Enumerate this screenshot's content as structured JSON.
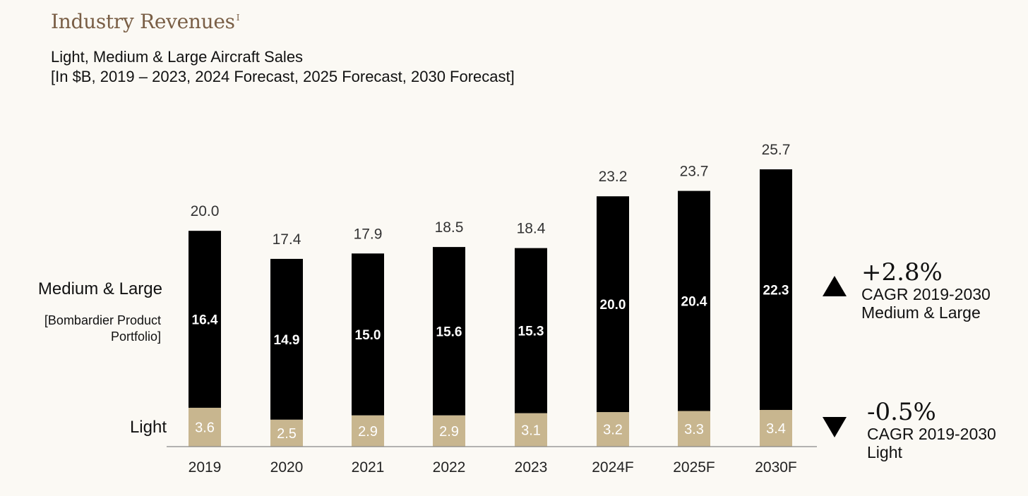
{
  "header": {
    "title": "Industry Revenues",
    "title_footnote": "I",
    "subtitle_line1": "Light, Medium & Large Aircraft Sales",
    "subtitle_line2": "[In $B, 2019 – 2023, 2024 Forecast, 2025 Forecast, 2030 Forecast]"
  },
  "labels": {
    "medium_large": "Medium & Large",
    "portfolio": "[Bombardier Product Portfolio]",
    "light": "Light"
  },
  "cagr": {
    "medium_large": {
      "value": "+2.8%",
      "desc_line1": "CAGR 2019-2030",
      "desc_line2": "Medium & Large"
    },
    "light": {
      "value": "-0.5%",
      "desc_line1": "CAGR 2019-2030",
      "desc_line2": "Light"
    }
  },
  "chart_data": {
    "type": "bar",
    "stacked": true,
    "categories": [
      "2019",
      "2020",
      "2021",
      "2022",
      "2023",
      "2024F",
      "2025F",
      "2030F"
    ],
    "series": [
      {
        "name": "Light",
        "values": [
          3.6,
          2.5,
          2.9,
          2.9,
          3.1,
          3.2,
          3.3,
          3.4
        ],
        "color": "#c8b68f"
      },
      {
        "name": "Medium & Large",
        "values": [
          16.4,
          14.9,
          15.0,
          15.6,
          15.3,
          20.0,
          20.4,
          22.3
        ],
        "color": "#000000"
      }
    ],
    "totals": [
      "20.0",
      "17.4",
      "17.9",
      "18.5",
      "18.4",
      "23.2",
      "23.7",
      "25.7"
    ],
    "segment_labels": {
      "Light": [
        "3.6",
        "2.5",
        "2.9",
        "2.9",
        "3.1",
        "3.2",
        "3.3",
        "3.4"
      ],
      "Medium & Large": [
        "16.4",
        "14.9",
        "15.0",
        "15.6",
        "15.3",
        "20.0",
        "20.4",
        "22.3"
      ]
    },
    "ylim": [
      0,
      25.7
    ],
    "grid": false,
    "colors": {
      "light": "#c8b68f",
      "medium_large": "#000000",
      "axis": "#888888"
    }
  }
}
